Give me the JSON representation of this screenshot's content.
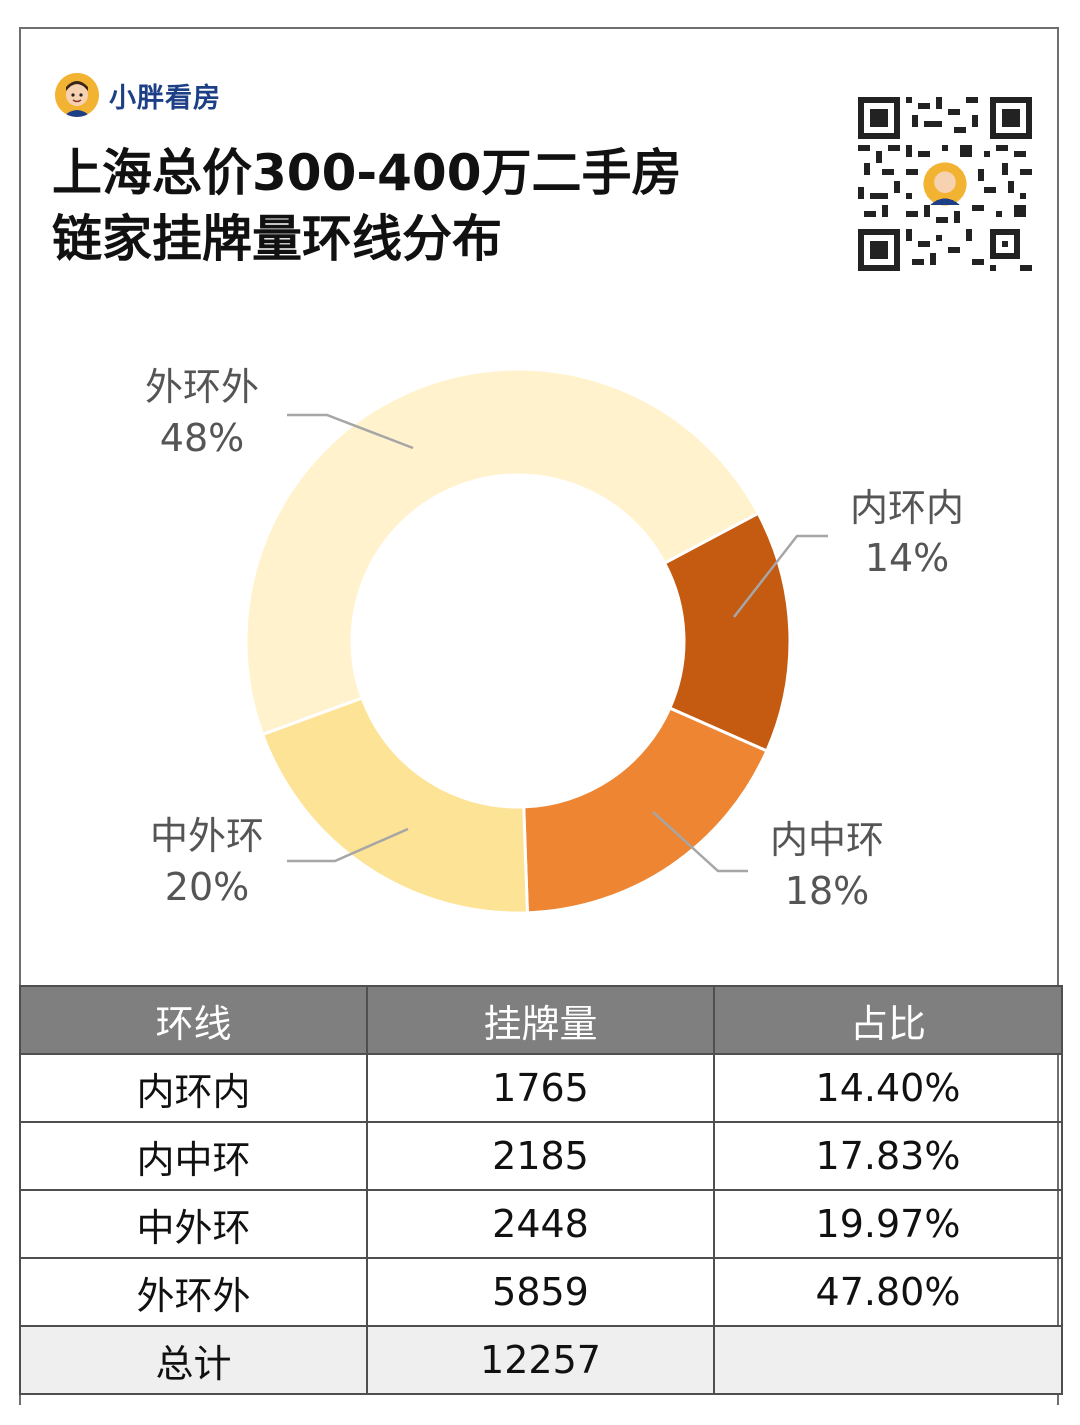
{
  "brand": {
    "name": "小胖看房"
  },
  "title": {
    "line1": "上海总价300-400万二手房",
    "line2": "链家挂牌量环线分布"
  },
  "colors": {
    "nei_huan_nei": "#c55a11",
    "nei_zhong_huan": "#ed8533",
    "zhong_wai_huan": "#fde396",
    "wai_huan_wai": "#fff2cc"
  },
  "chart_data": {
    "type": "pie",
    "style": "donut",
    "slices": [
      {
        "label": "内环内",
        "pct_label": "14%",
        "value": 1765,
        "color": "#c55a11"
      },
      {
        "label": "内中环",
        "pct_label": "18%",
        "value": 2185,
        "color": "#ed8533"
      },
      {
        "label": "中外环",
        "pct_label": "20%",
        "value": 2448,
        "color": "#fde396"
      },
      {
        "label": "外环外",
        "pct_label": "48%",
        "value": 5859,
        "color": "#fff2cc"
      }
    ]
  },
  "table": {
    "headers": [
      "环线",
      "挂牌量",
      "占比"
    ],
    "rows": [
      [
        "内环内",
        "1765",
        "14.40%"
      ],
      [
        "内中环",
        "2185",
        "17.83%"
      ],
      [
        "中外环",
        "2448",
        "19.97%"
      ],
      [
        "外环外",
        "5859",
        "47.80%"
      ]
    ],
    "total": [
      "总计",
      "12257",
      ""
    ]
  }
}
